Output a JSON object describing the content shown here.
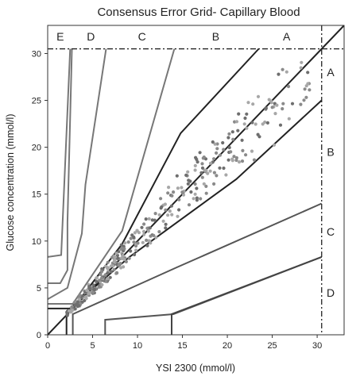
{
  "chart_data": {
    "type": "scatter",
    "title": "Consensus Error Grid- Capillary Blood",
    "xlabel": "YSI 2300 (mmol/l)",
    "ylabel": "Glucose concentration (mmol/l)",
    "xlim": [
      0,
      33
    ],
    "ylim": [
      0,
      33
    ],
    "x_ticks": [
      "0",
      "5",
      "10",
      "15",
      "20",
      "25",
      "30"
    ],
    "y_ticks": [
      "0",
      "5",
      "10",
      "15",
      "20",
      "25",
      "30"
    ],
    "grid": false,
    "boundary_lines": [
      {
        "zone": "A-B upper",
        "color": "#222222",
        "points": [
          [
            0,
            2.8
          ],
          [
            2.8,
            2.8
          ],
          [
            8.3,
            9.7
          ],
          [
            14.8,
            21.5
          ],
          [
            23.5,
            30.5
          ]
        ]
      },
      {
        "zone": "B-C upper",
        "color": "#777777",
        "points": [
          [
            0,
            3.3
          ],
          [
            2.8,
            3.3
          ],
          [
            8.3,
            11.1
          ],
          [
            14.1,
            30.5
          ]
        ]
      },
      {
        "zone": "C-D upper",
        "color": "#777777",
        "points": [
          [
            0,
            3.8
          ],
          [
            2.2,
            5.0
          ],
          [
            3.8,
            10.8
          ],
          [
            4.2,
            16.0
          ],
          [
            6.5,
            30.5
          ]
        ]
      },
      {
        "zone": "D-E upper",
        "color": "#777777",
        "points": [
          [
            0,
            5.5
          ],
          [
            1.4,
            5.5
          ],
          [
            2.2,
            6.9
          ],
          [
            2.2,
            12.0
          ],
          [
            2.7,
            30.5
          ]
        ]
      },
      {
        "zone": "E upper",
        "color": "#777777",
        "points": [
          [
            0,
            8.3
          ],
          [
            1.5,
            8.5
          ],
          [
            2.5,
            30.5
          ]
        ]
      },
      {
        "zone": "A-B lower",
        "color": "#222222",
        "points": [
          [
            2.1,
            0
          ],
          [
            2.1,
            2.5
          ],
          [
            9.1,
            8.3
          ],
          [
            21.0,
            16.6
          ],
          [
            30.5,
            25.0
          ]
        ]
      },
      {
        "zone": "B-C lower",
        "color": "#555555",
        "points": [
          [
            2.8,
            0
          ],
          [
            2.8,
            2.2
          ],
          [
            14.4,
            7.2
          ],
          [
            30.5,
            14.0
          ]
        ]
      },
      {
        "zone": "C-D lower",
        "color": "#555555",
        "points": [
          [
            6.4,
            0
          ],
          [
            6.4,
            1.6
          ],
          [
            14.0,
            2.2
          ],
          [
            30.5,
            8.3
          ]
        ]
      },
      {
        "zone": "D-E lower",
        "color": "#444444",
        "points": [
          [
            13.8,
            0
          ],
          [
            13.8,
            2.2
          ],
          [
            30.5,
            8.3
          ]
        ]
      }
    ],
    "identity_line": {
      "color": "#222222",
      "points": [
        [
          0,
          0
        ],
        [
          33,
          33
        ]
      ]
    },
    "reference_lines": [
      {
        "orientation": "horizontal",
        "value": 30.5,
        "style": "dash-dot"
      },
      {
        "orientation": "vertical",
        "value": 30.5,
        "style": "dash-dot"
      }
    ],
    "zone_labels_top": [
      {
        "text": "E",
        "x": 1.4,
        "y": 31.8
      },
      {
        "text": "D",
        "x": 4.8,
        "y": 31.8
      },
      {
        "text": "C",
        "x": 10.5,
        "y": 31.8
      },
      {
        "text": "B",
        "x": 18.7,
        "y": 31.8
      },
      {
        "text": "A",
        "x": 26.6,
        "y": 31.8
      }
    ],
    "zone_labels_right": [
      {
        "text": "A",
        "x": 31.5,
        "y": 28.0
      },
      {
        "text": "B",
        "x": 31.5,
        "y": 19.5
      },
      {
        "text": "C",
        "x": 31.5,
        "y": 11.0
      },
      {
        "text": "D",
        "x": 31.5,
        "y": 4.5
      }
    ],
    "point_colors": [
      "#8a8a8a",
      "#a7a7a7",
      "#6e6e6e"
    ],
    "scatter_clusters": [
      {
        "x_range": [
          2.0,
          2.8
        ],
        "ratio_range": [
          0.88,
          1.15
        ],
        "count": 10
      },
      {
        "x_range": [
          2.8,
          5.0
        ],
        "ratio_range": [
          0.86,
          1.18
        ],
        "count": 50
      },
      {
        "x_range": [
          5.0,
          8.5
        ],
        "ratio_range": [
          0.85,
          1.18
        ],
        "count": 90
      },
      {
        "x_range": [
          8.5,
          12.0
        ],
        "ratio_range": [
          0.85,
          1.15
        ],
        "count": 45
      },
      {
        "x_range": [
          12.0,
          17.0
        ],
        "ratio_range": [
          0.86,
          1.18
        ],
        "count": 50
      },
      {
        "x_range": [
          17.0,
          22.5
        ],
        "ratio_range": [
          0.85,
          1.12
        ],
        "count": 60
      },
      {
        "x_range": [
          22.5,
          27.0
        ],
        "ratio_range": [
          0.8,
          1.1
        ],
        "count": 30
      },
      {
        "x_range": [
          27.0,
          29.3
        ],
        "ratio_range": [
          0.82,
          1.05
        ],
        "count": 12
      }
    ]
  }
}
